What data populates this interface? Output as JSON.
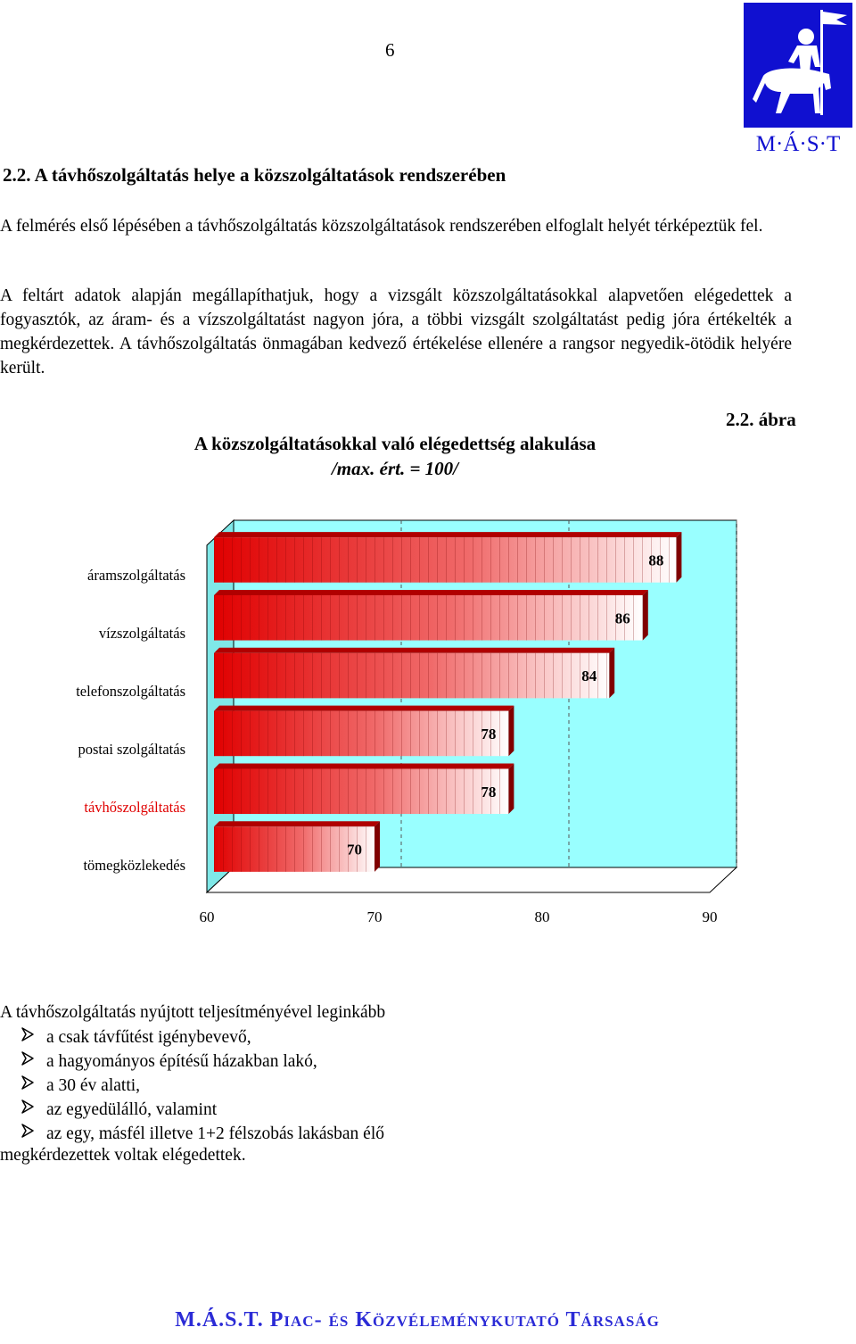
{
  "page": {
    "number": "6",
    "logo_text": "M·Á·S·T"
  },
  "section": {
    "heading": "2.2. A távhőszolgáltatás helye a közszolgáltatások rendszerében",
    "paragraph1": "A felmérés első lépésében a távhőszolgáltatás közszolgáltatások rendszerében elfoglalt helyét térképeztük fel.",
    "paragraph2": "A feltárt adatok alapján megállapíthatjuk, hogy a vizsgált közszolgáltatásokkal alapvetően elégedettek a fogyasztók, az áram- és a vízszolgáltatást nagyon jóra, a többi vizsgált szolgáltatást pedig jóra értékelték a megkérdezettek. A távhőszolgáltatás önmagában kedvező értékelése ellenére a rangsor negyedik-ötödik helyére került."
  },
  "figure": {
    "label": "2.2. ábra"
  },
  "chart_data": {
    "type": "bar",
    "title": "A közszolgáltatásokkal való elégedettség alakulása",
    "subtitle": "/max. ért. = 100/",
    "categories": [
      "áramszolgáltatás",
      "vízszolgáltatás",
      "telefonszolgáltatás",
      "postai szolgáltatás",
      "távhőszolgáltatás",
      "tömegközlekedés"
    ],
    "values": [
      88,
      86,
      84,
      78,
      78,
      70
    ],
    "value_labels": [
      "88",
      "86",
      "84",
      "78",
      "78",
      "70"
    ],
    "highlight": "távhőszolgáltatás",
    "orientation": "horizontal",
    "xlim": [
      60,
      90
    ],
    "xticks": [
      "60",
      "70",
      "80",
      "90"
    ],
    "grid": "vertical dashed",
    "colors": {
      "plot_background": "#99ffff",
      "bar_gradient_start": "#e00000",
      "bar_gradient_end": "#ffffff",
      "bar_shadow": "#800000",
      "highlight_label": "#e00000"
    }
  },
  "bullets": {
    "intro": "A távhőszolgáltatás nyújtott teljesítményével leginkább",
    "items": [
      "a csak távfűtést igénybevevő,",
      "a hagyományos építésű házakban lakó,",
      "a 30 év alatti,",
      "az egyedülálló, valamint",
      "az egy, másfél illetve 1+2 félszobás lakásban élő"
    ],
    "outro": "megkérdezettek voltak elégedettek."
  },
  "footer": {
    "text": "M.Á.S.T. Piac- és Közvéleménykutató Társaság"
  }
}
